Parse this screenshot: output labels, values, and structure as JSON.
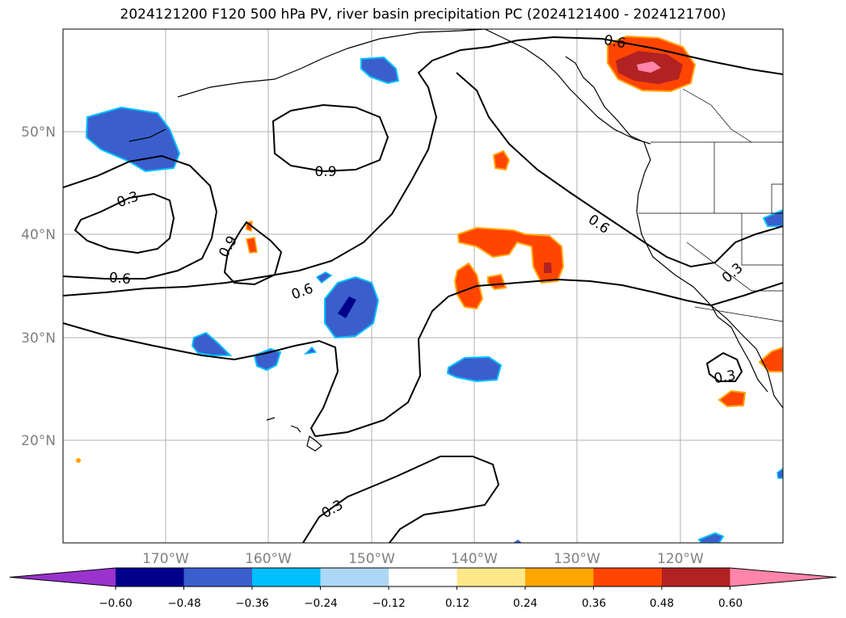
{
  "title": "2024121200 F120 500 hPa PV, river basin precipitation PC (2024121400 - 2024121700)",
  "map": {
    "lat_labels": [
      "50°N",
      "40°N",
      "30°N",
      "20°N"
    ],
    "lon_labels": [
      "170°W",
      "160°W",
      "150°W",
      "140°W",
      "130°W",
      "120°W"
    ],
    "contour_labels": [
      "0.3",
      "0.6",
      "0.9",
      "0.6",
      "0.9",
      "0.6",
      "0.6",
      "0.3",
      "0.3",
      "0.3"
    ]
  },
  "colorbar": {
    "tick_labels": [
      "−0.60",
      "−0.48",
      "−0.36",
      "−0.24",
      "−0.12",
      "0.12",
      "0.24",
      "0.36",
      "0.48",
      "0.60"
    ],
    "colors": [
      "#9933cc",
      "#00008b",
      "#3a5fcd",
      "#00bfff",
      "#add8f5",
      "#ffffff",
      "#ffe88a",
      "#ffa500",
      "#ff4500",
      "#b22222",
      "#ff85aa"
    ]
  }
}
